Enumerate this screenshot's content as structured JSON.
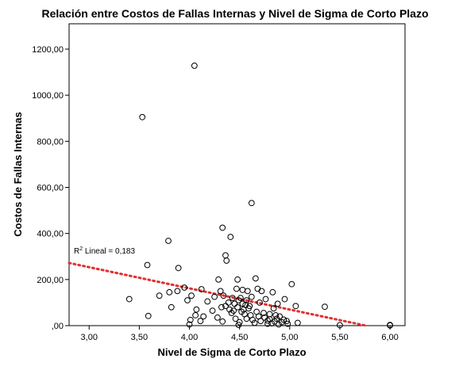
{
  "chart_data": {
    "type": "scatter",
    "title": "Relación entre Costos de Fallas Internas y Nivel de Sigma de Corto Plazo",
    "xlabel": "Nivel de Sigma de Corto Plazo",
    "ylabel": "Costos de Fallas Internas",
    "xlim": [
      2.8,
      6.15
    ],
    "ylim": [
      0,
      1310
    ],
    "x_ticks": [
      3.0,
      3.5,
      4.0,
      4.5,
      5.0,
      5.5,
      6.0
    ],
    "x_tick_labels": [
      "3,00",
      "3,50",
      "4,00",
      "4,50",
      "5,00",
      "5,50",
      "6,00"
    ],
    "y_ticks": [
      0,
      200,
      400,
      600,
      800,
      1000,
      1200
    ],
    "y_tick_labels": [
      ",00",
      "200,00",
      "400,00",
      "600,00",
      "800,00",
      "1000,00",
      "1200,00"
    ],
    "grid": false,
    "point_color": "#000000",
    "fit_line": {
      "label_prefix": "R",
      "label_sup": "2",
      "label_rest": " Lineal = 0,183",
      "color": "#e03030",
      "x": [
        2.8,
        5.76
      ],
      "y": [
        272,
        0
      ]
    },
    "points": [
      [
        4.05,
        1128
      ],
      [
        3.53,
        905
      ],
      [
        4.62,
        532
      ],
      [
        4.33,
        425
      ],
      [
        4.41,
        385
      ],
      [
        3.79,
        368
      ],
      [
        4.36,
        305
      ],
      [
        4.37,
        282
      ],
      [
        3.58,
        263
      ],
      [
        3.89,
        250
      ],
      [
        4.29,
        200
      ],
      [
        4.48,
        200
      ],
      [
        4.66,
        205
      ],
      [
        5.02,
        180
      ],
      [
        3.95,
        165
      ],
      [
        4.12,
        158
      ],
      [
        4.31,
        150
      ],
      [
        4.47,
        160
      ],
      [
        4.53,
        155
      ],
      [
        4.58,
        150
      ],
      [
        4.68,
        160
      ],
      [
        4.72,
        150
      ],
      [
        4.83,
        145
      ],
      [
        3.8,
        145
      ],
      [
        3.88,
        150
      ],
      [
        3.7,
        130
      ],
      [
        4.02,
        130
      ],
      [
        4.25,
        125
      ],
      [
        4.34,
        130
      ],
      [
        4.43,
        120
      ],
      [
        4.51,
        120
      ],
      [
        4.62,
        125
      ],
      [
        4.76,
        115
      ],
      [
        4.95,
        115
      ],
      [
        3.4,
        115
      ],
      [
        3.98,
        110
      ],
      [
        4.18,
        105
      ],
      [
        4.39,
        100
      ],
      [
        4.45,
        95
      ],
      [
        4.49,
        110
      ],
      [
        4.56,
        90
      ],
      [
        4.6,
        85
      ],
      [
        4.7,
        100
      ],
      [
        4.84,
        75
      ],
      [
        4.88,
        95
      ],
      [
        5.06,
        85
      ],
      [
        5.35,
        82
      ],
      [
        3.82,
        80
      ],
      [
        4.07,
        70
      ],
      [
        4.23,
        65
      ],
      [
        4.32,
        80
      ],
      [
        4.4,
        70
      ],
      [
        4.44,
        65
      ],
      [
        4.52,
        60
      ],
      [
        4.54,
        70
      ],
      [
        4.59,
        75
      ],
      [
        4.67,
        60
      ],
      [
        4.74,
        55
      ],
      [
        4.8,
        50
      ],
      [
        4.86,
        45
      ],
      [
        4.9,
        40
      ],
      [
        4.06,
        45
      ],
      [
        4.14,
        40
      ],
      [
        4.28,
        35
      ],
      [
        4.46,
        30
      ],
      [
        4.57,
        30
      ],
      [
        4.63,
        25
      ],
      [
        4.71,
        20
      ],
      [
        4.78,
        22
      ],
      [
        4.85,
        18
      ],
      [
        4.92,
        15
      ],
      [
        4.97,
        20
      ],
      [
        5.08,
        12
      ],
      [
        3.59,
        42
      ],
      [
        4.01,
        25
      ],
      [
        4.11,
        20
      ],
      [
        4.33,
        18
      ],
      [
        4.5,
        15
      ],
      [
        4.65,
        12
      ],
      [
        4.82,
        10
      ],
      [
        4.98,
        8
      ],
      [
        4.87,
        30
      ],
      [
        4.8,
        28
      ],
      [
        4.75,
        35
      ],
      [
        4.69,
        40
      ],
      [
        4.61,
        45
      ],
      [
        4.55,
        50
      ],
      [
        4.42,
        55
      ],
      [
        4.36,
        85
      ],
      [
        4.48,
        80
      ],
      [
        4.53,
        95
      ],
      [
        4.0,
        5
      ],
      [
        4.49,
        3
      ],
      [
        4.89,
        5
      ],
      [
        5.5,
        2
      ],
      [
        6.0,
        1
      ],
      [
        6.0,
        3
      ],
      [
        4.78,
        8
      ],
      [
        4.94,
        26
      ],
      [
        4.57,
        110
      ]
    ]
  }
}
